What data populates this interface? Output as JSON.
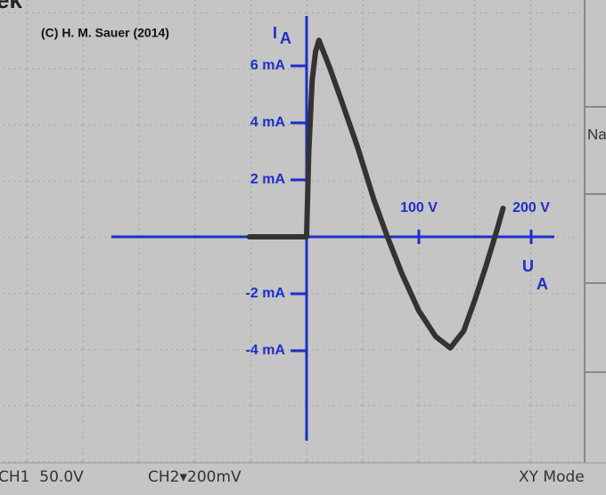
{
  "chart_data": {
    "type": "line",
    "credit": "(C) H. M. Sauer (2014)",
    "y_label": {
      "main": "I",
      "sub": "A"
    },
    "x_label": {
      "main": "U",
      "sub": "A"
    },
    "x": [
      -51,
      -30,
      -10,
      0,
      2,
      5,
      8,
      11,
      14,
      20,
      30,
      45,
      60,
      72,
      85,
      100,
      115,
      128,
      140,
      150,
      160,
      170,
      175
    ],
    "series": [
      {
        "color": "#333333",
        "values": [
          0,
          0,
          0,
          0,
          3,
          5.5,
          6.5,
          6.9,
          6.6,
          6.0,
          4.9,
          3.2,
          1.3,
          0,
          -1.3,
          -2.6,
          -3.5,
          -3.9,
          -3.3,
          -2.2,
          -1.0,
          0.3,
          1.0
        ]
      }
    ],
    "xlim": [
      -250,
      250
    ],
    "ylim": [
      -8,
      8
    ],
    "xticks": [
      {
        "value": 100,
        "label": "100 V"
      },
      {
        "value": 200,
        "label": "200 V"
      }
    ],
    "yticks": [
      {
        "value": -4,
        "label": "-4 mA"
      },
      {
        "value": -2,
        "label": "-2 mA"
      },
      {
        "value": 2,
        "label": "2 mA"
      },
      {
        "value": 4,
        "label": "4 mA"
      },
      {
        "value": 6,
        "label": "6 mA"
      }
    ],
    "axis_color": "#1c2fc8",
    "screen_text": {
      "top_left": "ek",
      "menu": "Na",
      "ch1": "CH1  50.0V",
      "ch2": "CH2▾200mV",
      "mode": "XY Mode"
    }
  }
}
